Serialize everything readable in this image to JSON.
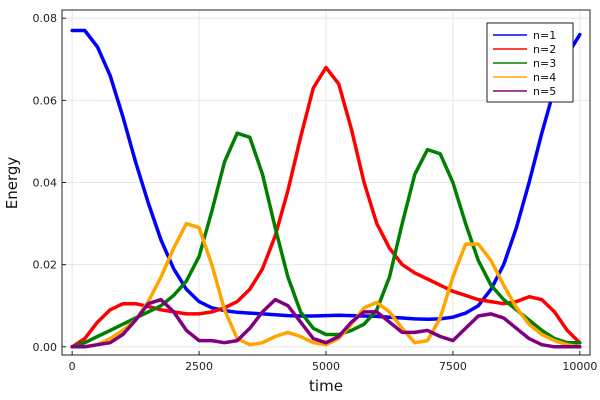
{
  "chart_data": {
    "type": "line",
    "title": "",
    "xlabel": "time",
    "ylabel": "Energy",
    "xlim": [
      -200,
      10200
    ],
    "ylim": [
      -0.002,
      0.082
    ],
    "xticks": [
      0,
      2500,
      5000,
      7500,
      10000
    ],
    "xtick_labels": [
      "0",
      "2500",
      "5000",
      "7500",
      "10000"
    ],
    "yticks": [
      0.0,
      0.02,
      0.04,
      0.06,
      0.08
    ],
    "ytick_labels": [
      "0.00",
      "0.02",
      "0.04",
      "0.06",
      "0.08"
    ],
    "grid": true,
    "legend_position": "top-right",
    "x": [
      0,
      250,
      500,
      750,
      1000,
      1250,
      1500,
      1750,
      2000,
      2250,
      2500,
      2750,
      3000,
      3250,
      3500,
      3750,
      4000,
      4250,
      4500,
      4750,
      5000,
      5250,
      5500,
      5750,
      6000,
      6250,
      6500,
      6750,
      7000,
      7250,
      7500,
      7750,
      8000,
      8250,
      8500,
      8750,
      9000,
      9250,
      9500,
      9750,
      10000
    ],
    "series": [
      {
        "name": "n=1",
        "color": "#0000ff",
        "values": [
          0.077,
          0.077,
          0.073,
          0.066,
          0.056,
          0.045,
          0.035,
          0.026,
          0.019,
          0.014,
          0.011,
          0.0095,
          0.0088,
          0.0084,
          0.0082,
          0.008,
          0.0078,
          0.0076,
          0.0075,
          0.0075,
          0.0076,
          0.0077,
          0.0076,
          0.0075,
          0.0074,
          0.0072,
          0.007,
          0.0068,
          0.0067,
          0.0068,
          0.0072,
          0.0082,
          0.01,
          0.014,
          0.02,
          0.029,
          0.04,
          0.052,
          0.063,
          0.071,
          0.076
        ]
      },
      {
        "name": "n=2",
        "color": "#ff0000",
        "values": [
          0.0,
          0.002,
          0.006,
          0.009,
          0.0105,
          0.0105,
          0.0098,
          0.009,
          0.0085,
          0.008,
          0.008,
          0.0085,
          0.0095,
          0.011,
          0.014,
          0.019,
          0.027,
          0.038,
          0.051,
          0.063,
          0.068,
          0.064,
          0.053,
          0.04,
          0.03,
          0.024,
          0.02,
          0.018,
          0.0165,
          0.015,
          0.0135,
          0.0125,
          0.0115,
          0.011,
          0.0105,
          0.011,
          0.0122,
          0.0115,
          0.0085,
          0.004,
          0.001
        ]
      },
      {
        "name": "n=3",
        "color": "#008000",
        "values": [
          0.0,
          0.001,
          0.0025,
          0.004,
          0.0055,
          0.007,
          0.0085,
          0.01,
          0.0125,
          0.016,
          0.022,
          0.033,
          0.045,
          0.052,
          0.051,
          0.042,
          0.029,
          0.017,
          0.0085,
          0.0045,
          0.003,
          0.003,
          0.004,
          0.0055,
          0.009,
          0.017,
          0.03,
          0.042,
          0.048,
          0.047,
          0.04,
          0.03,
          0.021,
          0.015,
          0.0115,
          0.009,
          0.0065,
          0.004,
          0.002,
          0.001,
          0.001
        ]
      },
      {
        "name": "n=4",
        "color": "#ffa500",
        "values": [
          0.0,
          0.0,
          0.0005,
          0.002,
          0.004,
          0.0065,
          0.011,
          0.017,
          0.024,
          0.03,
          0.029,
          0.02,
          0.009,
          0.002,
          0.0005,
          0.001,
          0.0025,
          0.0035,
          0.0025,
          0.001,
          0.0005,
          0.002,
          0.0055,
          0.0095,
          0.0108,
          0.0085,
          0.0045,
          0.001,
          0.0015,
          0.007,
          0.017,
          0.025,
          0.025,
          0.021,
          0.015,
          0.0095,
          0.0055,
          0.003,
          0.0015,
          0.0005,
          0.0
        ]
      },
      {
        "name": "n=5",
        "color": "#800080",
        "values": [
          0.0,
          0.0,
          0.0005,
          0.001,
          0.003,
          0.0065,
          0.0105,
          0.0115,
          0.0085,
          0.004,
          0.0015,
          0.0015,
          0.001,
          0.0015,
          0.0045,
          0.0085,
          0.0115,
          0.01,
          0.006,
          0.002,
          0.001,
          0.0025,
          0.006,
          0.0085,
          0.0085,
          0.006,
          0.0035,
          0.0035,
          0.004,
          0.0025,
          0.0015,
          0.0045,
          0.0075,
          0.008,
          0.007,
          0.0045,
          0.002,
          0.0005,
          0.0,
          0.0,
          0.0
        ]
      }
    ]
  }
}
